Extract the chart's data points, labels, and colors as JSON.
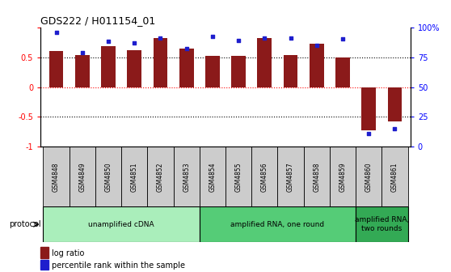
{
  "title": "GDS222 / H011154_01",
  "samples": [
    "GSM4848",
    "GSM4849",
    "GSM4850",
    "GSM4851",
    "GSM4852",
    "GSM4853",
    "GSM4854",
    "GSM4855",
    "GSM4856",
    "GSM4857",
    "GSM4858",
    "GSM4859",
    "GSM4860",
    "GSM4861"
  ],
  "log_ratios": [
    0.6,
    0.53,
    0.69,
    0.62,
    0.82,
    0.64,
    0.52,
    0.52,
    0.82,
    0.54,
    0.73,
    0.49,
    -0.72,
    -0.58
  ],
  "percentile_ranks": [
    96,
    79,
    88,
    87,
    91,
    82,
    92,
    89,
    91,
    91,
    85,
    90,
    11,
    15
  ],
  "bar_color": "#8B1A1A",
  "dot_color": "#1E1ECD",
  "groups": [
    {
      "label": "unamplified cDNA",
      "start": 0,
      "end": 5,
      "color": "#AAEEBB"
    },
    {
      "label": "amplified RNA, one round",
      "start": 6,
      "end": 11,
      "color": "#55CC77"
    },
    {
      "label": "amplified RNA,\ntwo rounds",
      "start": 12,
      "end": 13,
      "color": "#33AA55"
    }
  ],
  "protocol_label": "protocol",
  "ylim_left": [
    -1,
    1
  ],
  "ylim_right": [
    0,
    100
  ],
  "yticks_left": [
    -1,
    -0.5,
    0,
    0.5,
    1
  ],
  "ytick_labels_left": [
    "-1",
    "-0.5",
    "0",
    "0.5",
    ""
  ],
  "yticks_right": [
    0,
    25,
    50,
    75,
    100
  ],
  "ytick_labels_right": [
    "0",
    "25",
    "50",
    "75",
    "100%"
  ],
  "hlines_dotted": [
    -0.5,
    0.5
  ],
  "hline_red_dashed": 0,
  "bar_width": 0.55,
  "sample_box_color": "#CCCCCC",
  "legend_bar_label": "log ratio",
  "legend_dot_label": "percentile rank within the sample"
}
